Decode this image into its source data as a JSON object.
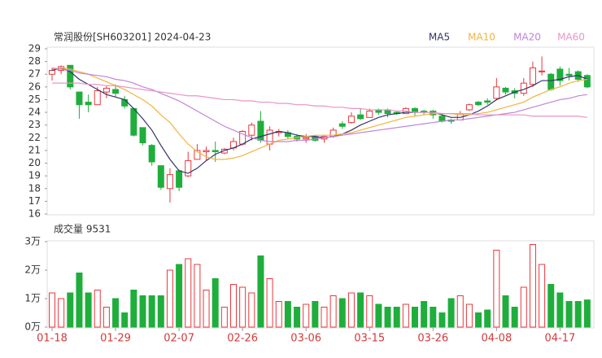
{
  "chart_data": [
    {
      "type": "candlestick",
      "title": "常润股份[SH603201] 2024-04-23",
      "up_color": "#e8383d",
      "down_color": "#1fae3c",
      "open": [
        27.0,
        27.3,
        27.7,
        25.6,
        24.8,
        24.6,
        25.6,
        25.8,
        25.0,
        24.3,
        22.8,
        21.4,
        19.8,
        18.0,
        19.4,
        19.0,
        20.3,
        20.9,
        21.0,
        20.8,
        21.2,
        21.5,
        22.2,
        23.3,
        21.5,
        22.4,
        22.4,
        22.1,
        21.9,
        22.1,
        21.9,
        22.1,
        23.1,
        23.2,
        23.8,
        23.6,
        24.2,
        24.2,
        24.0,
        23.9,
        24.3,
        24.1,
        24.1,
        23.7,
        23.4,
        23.4,
        24.2,
        24.8,
        24.9,
        25.1,
        25.9,
        25.7,
        25.5,
        26.2,
        27.2,
        27.0,
        27.4,
        27.0,
        27.2,
        26.9
      ],
      "high": [
        27.5,
        27.7,
        27.7,
        25.6,
        25.4,
        26.0,
        26.1,
        26.2,
        25.3,
        24.3,
        22.8,
        21.5,
        19.8,
        19.6,
        19.5,
        20.9,
        21.5,
        21.3,
        21.7,
        21.2,
        22.0,
        22.6,
        23.2,
        24.1,
        22.9,
        22.7,
        22.6,
        22.3,
        22.3,
        22.2,
        22.2,
        22.8,
        23.3,
        24.0,
        24.3,
        24.3,
        24.3,
        24.3,
        24.1,
        24.4,
        24.4,
        24.2,
        24.2,
        23.9,
        23.5,
        24.1,
        24.7,
        24.9,
        25.1,
        26.7,
        26.0,
        25.9,
        26.7,
        28.0,
        28.4,
        27.1,
        27.6,
        27.5,
        27.3,
        27.0
      ],
      "low": [
        26.5,
        27.0,
        25.8,
        23.5,
        24.0,
        24.6,
        25.1,
        25.2,
        24.3,
        22.1,
        21.4,
        19.8,
        17.9,
        16.9,
        17.8,
        18.9,
        20.3,
        20.2,
        20.1,
        20.7,
        21.0,
        21.4,
        21.8,
        21.6,
        21.0,
        22.1,
        21.9,
        21.7,
        21.6,
        21.7,
        21.6,
        22.0,
        22.7,
        23.1,
        23.4,
        23.6,
        23.8,
        23.6,
        23.8,
        23.9,
        23.7,
        23.8,
        23.5,
        23.2,
        23.1,
        23.4,
        24.1,
        24.5,
        24.6,
        25.0,
        25.4,
        25.1,
        25.3,
        26.0,
        26.9,
        25.7,
        26.1,
        26.5,
        26.4,
        25.9
      ],
      "close": [
        27.3,
        27.6,
        26.0,
        24.6,
        24.6,
        25.7,
        25.9,
        25.5,
        24.5,
        22.2,
        21.6,
        20.1,
        18.1,
        19.1,
        18.1,
        20.2,
        21.0,
        21.0,
        20.9,
        21.1,
        21.7,
        22.5,
        23.0,
        21.8,
        22.6,
        22.5,
        22.1,
        21.9,
        22.0,
        21.8,
        22.1,
        22.6,
        22.9,
        23.7,
        23.5,
        24.1,
        24.0,
        23.9,
        23.9,
        24.3,
        24.0,
        24.0,
        23.8,
        23.3,
        23.3,
        23.9,
        24.6,
        24.6,
        24.8,
        26.0,
        25.6,
        25.5,
        26.3,
        27.5,
        27.25,
        25.8,
        26.5,
        26.9,
        26.6,
        26.0
      ],
      "series": [
        {
          "name": "MA5",
          "color": "#33336b",
          "values": [
            27.3,
            27.5,
            27.2,
            26.6,
            26.2,
            25.8,
            25.4,
            25.2,
            25.0,
            24.3,
            23.5,
            22.6,
            21.4,
            20.3,
            19.4,
            19.2,
            19.6,
            20.2,
            20.7,
            21.0,
            21.2,
            21.5,
            21.9,
            22.1,
            22.3,
            22.5,
            22.4,
            22.2,
            22.1,
            22.1,
            22.0,
            22.1,
            22.3,
            22.6,
            23.0,
            23.3,
            23.6,
            23.8,
            23.9,
            24.0,
            24.0,
            24.0,
            24.0,
            23.8,
            23.6,
            23.6,
            23.8,
            24.1,
            24.5,
            25.0,
            25.3,
            25.6,
            25.8,
            26.1,
            26.5,
            26.5,
            26.6,
            26.8,
            26.9,
            26.6
          ]
        },
        {
          "name": "MA10",
          "color": "#f2b43c",
          "values": [
            27.4,
            27.5,
            27.4,
            27.2,
            27.0,
            26.7,
            26.4,
            26.1,
            25.8,
            25.4,
            25.0,
            24.5,
            23.8,
            23.2,
            22.3,
            21.5,
            20.9,
            20.5,
            20.3,
            20.3,
            20.4,
            20.6,
            20.9,
            21.2,
            21.5,
            21.8,
            21.9,
            22.0,
            22.1,
            22.2,
            22.2,
            22.2,
            22.3,
            22.4,
            22.6,
            22.8,
            23.0,
            23.2,
            23.4,
            23.6,
            23.7,
            23.8,
            23.9,
            23.9,
            23.9,
            23.8,
            23.8,
            23.9,
            24.0,
            24.2,
            24.4,
            24.6,
            24.8,
            25.2,
            25.5,
            25.8,
            26.0,
            26.3,
            26.5,
            26.6
          ]
        },
        {
          "name": "MA20",
          "color": "#c084dc",
          "values": [
            27.5,
            27.4,
            27.3,
            27.1,
            27.0,
            26.9,
            26.8,
            26.6,
            26.5,
            26.3,
            26.0,
            25.8,
            25.5,
            25.2,
            24.9,
            24.5,
            24.1,
            23.7,
            23.3,
            22.9,
            22.6,
            22.3,
            22.0,
            21.8,
            21.7,
            21.7,
            21.7,
            21.8,
            21.8,
            21.9,
            22.0,
            22.1,
            22.2,
            22.3,
            22.4,
            22.5,
            22.6,
            22.7,
            22.8,
            22.9,
            23.0,
            23.1,
            23.2,
            23.3,
            23.4,
            23.4,
            23.5,
            23.6,
            23.7,
            23.8,
            23.9,
            24.0,
            24.2,
            24.4,
            24.6,
            24.8,
            25.0,
            25.1,
            25.3,
            25.4
          ]
        },
        {
          "name": "MA60",
          "color": "#ea94c6",
          "values": [
            26.3,
            26.3,
            26.3,
            26.3,
            26.2,
            26.2,
            26.1,
            26.1,
            26.0,
            25.9,
            25.8,
            25.7,
            25.6,
            25.5,
            25.4,
            25.3,
            25.3,
            25.2,
            25.1,
            25.0,
            25.0,
            24.9,
            24.9,
            24.8,
            24.8,
            24.7,
            24.7,
            24.6,
            24.6,
            24.5,
            24.5,
            24.4,
            24.4,
            24.3,
            24.3,
            24.2,
            24.2,
            24.2,
            24.1,
            24.1,
            24.0,
            24.0,
            24.0,
            23.9,
            23.9,
            23.9,
            23.9,
            23.8,
            23.8,
            23.8,
            23.8,
            23.8,
            23.8,
            23.7,
            23.7,
            23.7,
            23.7,
            23.7,
            23.7,
            23.6
          ]
        }
      ],
      "ylim": [
        16,
        29
      ],
      "yticks": [
        16,
        17,
        18,
        19,
        20,
        21,
        22,
        23,
        24,
        25,
        26,
        27,
        28,
        29
      ]
    },
    {
      "type": "bar",
      "title": "成交量 9531",
      "categories": [
        "01-18",
        null,
        null,
        null,
        null,
        null,
        null,
        "01-29",
        null,
        null,
        null,
        null,
        null,
        null,
        "02-07",
        null,
        null,
        null,
        null,
        null,
        null,
        "02-26",
        null,
        null,
        null,
        null,
        null,
        null,
        "03-06",
        null,
        null,
        null,
        null,
        null,
        null,
        "03-15",
        null,
        null,
        null,
        null,
        null,
        null,
        "03-26",
        null,
        null,
        null,
        null,
        null,
        null,
        "04-08",
        null,
        null,
        null,
        null,
        null,
        null,
        "04-17",
        null,
        null,
        null
      ],
      "values": [
        1.2,
        1.0,
        1.2,
        1.9,
        1.2,
        1.3,
        0.7,
        1.0,
        0.5,
        1.3,
        1.1,
        1.1,
        1.1,
        2.0,
        2.2,
        2.4,
        2.2,
        1.3,
        1.7,
        0.7,
        1.5,
        1.4,
        1.2,
        2.5,
        1.7,
        0.9,
        0.9,
        0.7,
        0.8,
        0.9,
        0.7,
        1.1,
        1.0,
        1.2,
        1.2,
        1.1,
        0.8,
        0.7,
        0.7,
        0.8,
        0.7,
        0.9,
        0.7,
        0.5,
        1.0,
        1.1,
        0.8,
        0.5,
        0.6,
        2.7,
        1.1,
        0.7,
        1.4,
        2.9,
        2.2,
        1.5,
        1.2,
        0.9,
        0.9,
        0.9531
      ],
      "ylim": [
        0,
        3
      ],
      "yticks": [
        {
          "value": 0,
          "label": "0万"
        },
        {
          "value": 1,
          "label": "1万"
        },
        {
          "value": 2,
          "label": "2万"
        },
        {
          "value": 3,
          "label": "3万"
        }
      ]
    }
  ]
}
